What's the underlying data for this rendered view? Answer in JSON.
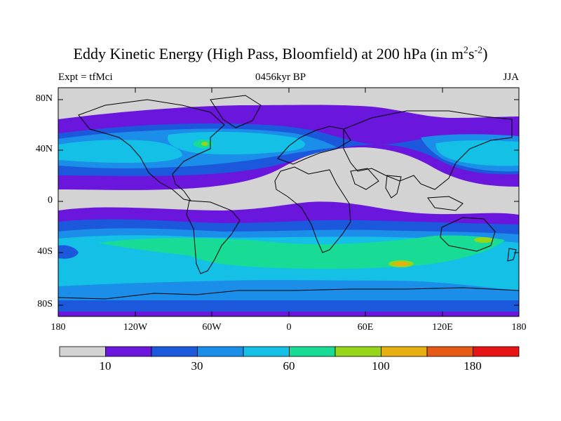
{
  "title": {
    "main": "Eddy Kinetic Energy (High Pass, Bloomfield) at 200 hPa (in m",
    "sup1": "2",
    "mid": "s",
    "sup2": "-2",
    "end": ")"
  },
  "subtitle": {
    "left": "Expt = tfMci",
    "center": "0456kyr BP",
    "right": "JJA"
  },
  "axes": {
    "y_labels": [
      "80N",
      "40N",
      "0",
      "40S",
      "80S"
    ],
    "x_labels": [
      "180",
      "120W",
      "60W",
      "0",
      "60E",
      "120E",
      "180"
    ]
  },
  "colorbar": {
    "colors": [
      "#d3d3d3",
      "#6a16dc",
      "#1c58dc",
      "#1a8ee8",
      "#14c0e6",
      "#18dc96",
      "#96d61a",
      "#e6b012",
      "#e65a16",
      "#e61414"
    ],
    "labels": [
      "10",
      "30",
      "60",
      "100",
      "180"
    ]
  },
  "palette": {
    "land_outline": "#000000",
    "background": "#ffffff"
  }
}
